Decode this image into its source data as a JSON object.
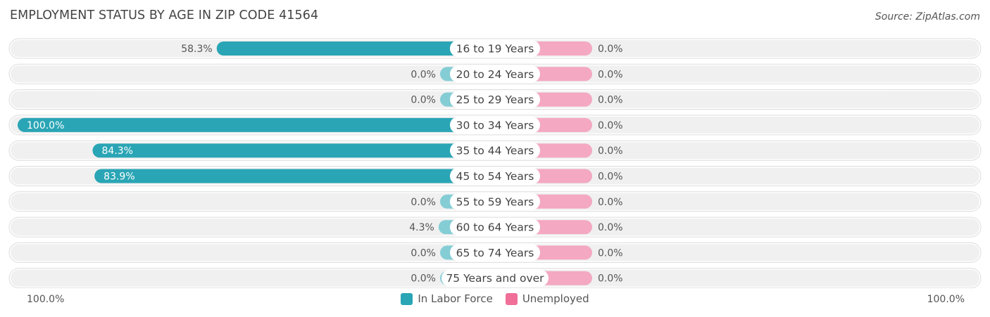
{
  "title": "EMPLOYMENT STATUS BY AGE IN ZIP CODE 41564",
  "source": "Source: ZipAtlas.com",
  "axis_left_label": "100.0%",
  "axis_right_label": "100.0%",
  "colors": {
    "labor_force_strong": "#2aa5b5",
    "labor_force_light": "#85cdd5",
    "unemployed_light": "#f4a8c2",
    "unemployed_swatch": "#ef6f98",
    "track": "#f0f0f0"
  },
  "legend": [
    {
      "label": "In Labor Force",
      "color": "#2aa5b5"
    },
    {
      "label": "Unemployed",
      "color": "#ef6f98"
    }
  ],
  "chart_data": {
    "type": "bar",
    "orientation": "horizontal-diverging",
    "categories": [
      "16 to 19 Years",
      "20 to 24 Years",
      "25 to 29 Years",
      "30 to 34 Years",
      "35 to 44 Years",
      "45 to 54 Years",
      "55 to 59 Years",
      "60 to 64 Years",
      "65 to 74 Years",
      "75 Years and over"
    ],
    "series": [
      {
        "name": "In Labor Force",
        "values": [
          58.3,
          0.0,
          0.0,
          100.0,
          84.3,
          83.9,
          0.0,
          4.3,
          0.0,
          0.0
        ],
        "labels": [
          "58.3%",
          "0.0%",
          "0.0%",
          "100.0%",
          "84.3%",
          "83.9%",
          "0.0%",
          "4.3%",
          "0.0%",
          "0.0%"
        ]
      },
      {
        "name": "Unemployed",
        "values": [
          0.0,
          0.0,
          0.0,
          0.0,
          0.0,
          0.0,
          0.0,
          0.0,
          0.0,
          0.0
        ],
        "labels": [
          "0.0%",
          "0.0%",
          "0.0%",
          "0.0%",
          "0.0%",
          "0.0%",
          "0.0%",
          "0.0%",
          "0.0%",
          "0.0%"
        ]
      }
    ],
    "xlim": [
      0,
      100
    ],
    "legend_position": "bottom-center"
  }
}
